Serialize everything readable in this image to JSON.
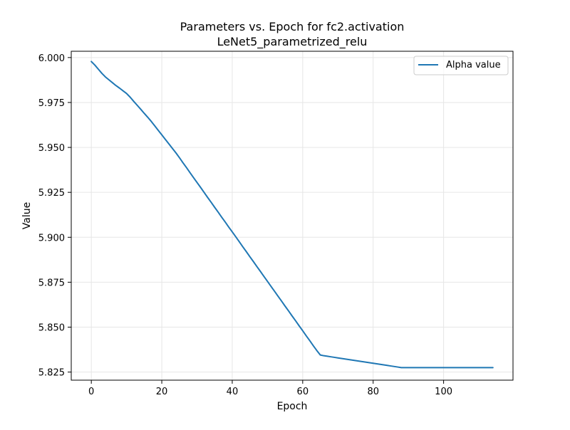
{
  "chart_data": {
    "type": "line",
    "title": "Parameters vs. Epoch for fc2.activation",
    "subtitle": "LeNet5_parametrized_relu",
    "xlabel": "Epoch",
    "ylabel": "Value",
    "xlim": [
      -5.7,
      119.7
    ],
    "ylim": [
      5.8205,
      6.0035
    ],
    "x_ticks": [
      0,
      20,
      40,
      60,
      80,
      100
    ],
    "y_ticks": [
      5.825,
      5.85,
      5.875,
      5.9,
      5.925,
      5.95,
      5.975,
      6.0
    ],
    "x_tick_labels": [
      "0",
      "20",
      "40",
      "60",
      "80",
      "100"
    ],
    "y_tick_labels": [
      "5.825",
      "5.850",
      "5.875",
      "5.900",
      "5.925",
      "5.950",
      "5.975",
      "6.000"
    ],
    "grid": true,
    "legend_position": "upper right",
    "series": [
      {
        "name": "Alpha value",
        "color": "#1f77b4",
        "x": [
          0,
          1,
          2,
          3,
          4,
          5,
          6,
          7,
          8,
          9,
          10,
          11,
          12,
          13,
          14,
          15,
          16,
          17,
          18,
          19,
          20,
          21,
          22,
          23,
          24,
          25,
          26,
          27,
          28,
          29,
          30,
          31,
          32,
          33,
          34,
          35,
          36,
          37,
          38,
          39,
          40,
          41,
          42,
          43,
          44,
          45,
          46,
          47,
          48,
          49,
          50,
          51,
          52,
          53,
          54,
          55,
          56,
          57,
          58,
          59,
          60,
          61,
          62,
          63,
          64,
          65,
          66,
          67,
          68,
          69,
          70,
          71,
          72,
          73,
          74,
          75,
          76,
          77,
          78,
          79,
          80,
          81,
          82,
          83,
          84,
          85,
          86,
          87,
          88,
          89,
          90,
          91,
          92,
          93,
          94,
          95,
          96,
          97,
          98,
          99,
          100,
          101,
          102,
          103,
          104,
          105,
          106,
          107,
          108,
          109,
          110,
          111,
          112,
          113,
          114
        ],
        "y": [
          5.9978,
          5.9958,
          5.9935,
          5.9912,
          5.9892,
          5.9876,
          5.986,
          5.9844,
          5.983,
          5.9815,
          5.98,
          5.978,
          5.9757,
          5.9735,
          5.9713,
          5.969,
          5.9668,
          5.9645,
          5.962,
          5.9595,
          5.957,
          5.9545,
          5.952,
          5.9495,
          5.947,
          5.9443,
          5.9415,
          5.9388,
          5.936,
          5.9332,
          5.9305,
          5.9278,
          5.925,
          5.9222,
          5.9195,
          5.9167,
          5.914,
          5.9112,
          5.9085,
          5.9057,
          5.903,
          5.9003,
          5.8975,
          5.8947,
          5.892,
          5.8892,
          5.8865,
          5.8837,
          5.881,
          5.8782,
          5.8755,
          5.8727,
          5.87,
          5.8672,
          5.8645,
          5.8617,
          5.859,
          5.8562,
          5.8535,
          5.8507,
          5.848,
          5.8452,
          5.8425,
          5.8397,
          5.837,
          5.8345,
          5.8341,
          5.8338,
          5.8335,
          5.8332,
          5.8329,
          5.8326,
          5.8323,
          5.832,
          5.8317,
          5.8314,
          5.8311,
          5.8308,
          5.8305,
          5.8302,
          5.8299,
          5.8296,
          5.8293,
          5.829,
          5.8287,
          5.8284,
          5.8281,
          5.8278,
          5.8275,
          5.8275,
          5.8275,
          5.8275,
          5.8275,
          5.8275,
          5.8275,
          5.8275,
          5.8275,
          5.8275,
          5.8275,
          5.8275,
          5.8275,
          5.8275,
          5.8275,
          5.8275,
          5.8275,
          5.8275,
          5.8275,
          5.8275,
          5.8275,
          5.8275,
          5.8275,
          5.8275,
          5.8275,
          5.8275,
          5.8275
        ]
      }
    ]
  }
}
